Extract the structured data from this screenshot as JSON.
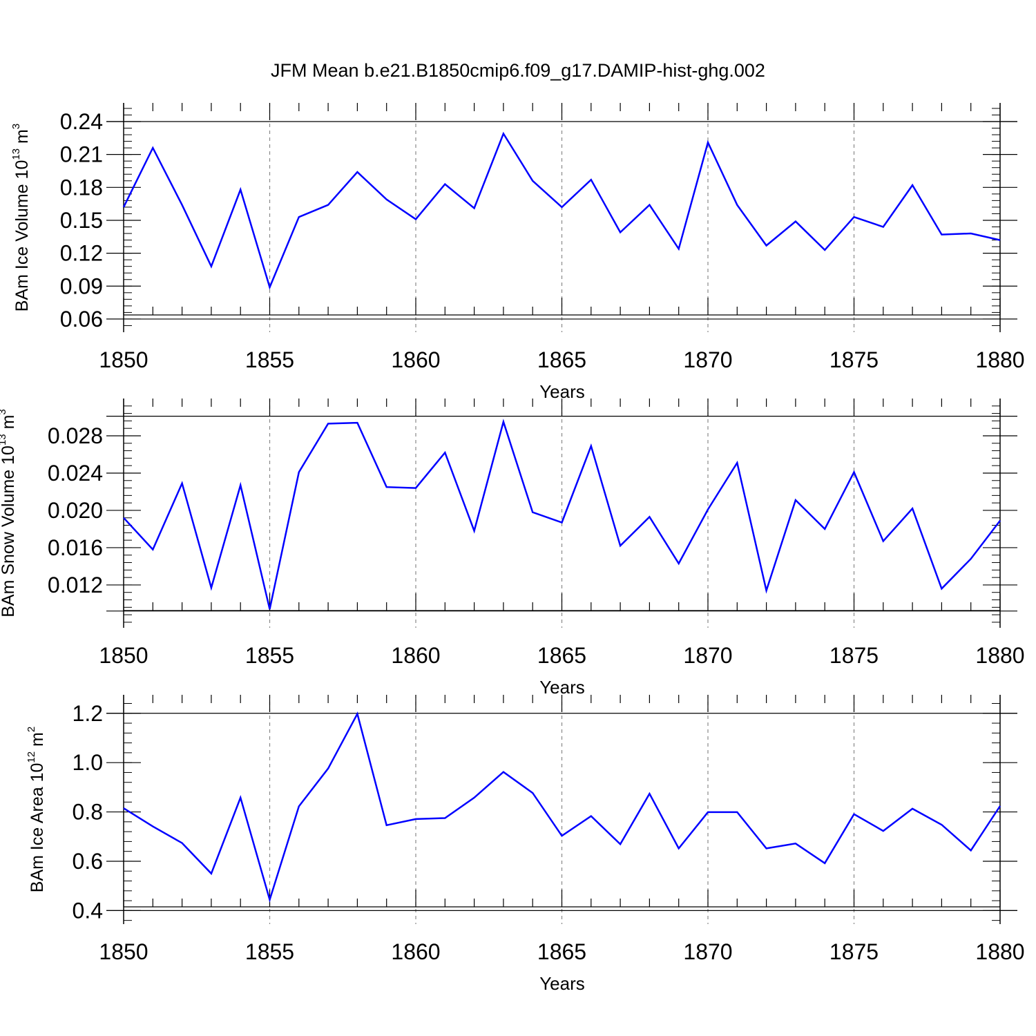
{
  "title": "JFM Mean b.e21.B1850cmip6.f09_g17.DAMIP-hist-ghg.002",
  "colors": {
    "line": "#0000ff",
    "axis": "#000000",
    "grid": "#888888"
  },
  "chart_data": [
    {
      "type": "line",
      "ylabel": {
        "text": "BAm Ice Volume 10",
        "sup": "13",
        "unit": " m",
        "unit_sup": "3"
      },
      "xlabel": "Years",
      "xlim": [
        1850,
        1880
      ],
      "ylim": [
        0.06,
        0.24
      ],
      "ylim_display": [
        0.048,
        0.257
      ],
      "yticks": [
        0.06,
        0.09,
        0.12,
        0.15,
        0.18,
        0.21,
        0.24
      ],
      "ytick_labels": [
        "0.06",
        "0.09",
        "0.12",
        "0.15",
        "0.18",
        "0.21",
        "0.24"
      ],
      "yminor_step": 0.006,
      "xticks": [
        1850,
        1855,
        1860,
        1865,
        1870,
        1875,
        1880
      ],
      "xtick_labels": [
        "1850",
        "1855",
        "1860",
        "1865",
        "1870",
        "1875",
        "1880"
      ],
      "grid": "vertical dashed at major x ticks",
      "series": [
        {
          "name": "BAm Ice Volume",
          "x": [
            1850,
            1851,
            1852,
            1853,
            1854,
            1855,
            1856,
            1857,
            1858,
            1859,
            1860,
            1861,
            1862,
            1863,
            1864,
            1865,
            1866,
            1867,
            1868,
            1869,
            1870,
            1871,
            1872,
            1873,
            1874,
            1875,
            1876,
            1877,
            1878,
            1879,
            1880
          ],
          "values": [
            0.162,
            0.216,
            0.164,
            0.108,
            0.178,
            0.089,
            0.153,
            0.164,
            0.194,
            0.169,
            0.151,
            0.183,
            0.161,
            0.229,
            0.186,
            0.162,
            0.187,
            0.139,
            0.164,
            0.124,
            0.221,
            0.164,
            0.127,
            0.149,
            0.123,
            0.153,
            0.144,
            0.182,
            0.137,
            0.138,
            0.132
          ]
        }
      ]
    },
    {
      "type": "line",
      "ylabel": {
        "text": "BAm Snow Volume 10",
        "sup": "13",
        "unit": " m",
        "unit_sup": "3"
      },
      "xlabel": "Years",
      "xlim": [
        1850,
        1880
      ],
      "ylim": [
        0.0092,
        0.0301
      ],
      "ylim_display": [
        0.0074,
        0.032
      ],
      "yticks": [
        0.012,
        0.016,
        0.02,
        0.024,
        0.028
      ],
      "ytick_labels": [
        "0.012",
        "0.016",
        "0.020",
        "0.024",
        "0.028"
      ],
      "yminor_step": 0.0008,
      "xticks": [
        1850,
        1855,
        1860,
        1865,
        1870,
        1875,
        1880
      ],
      "xtick_labels": [
        "1850",
        "1855",
        "1860",
        "1865",
        "1870",
        "1875",
        "1880"
      ],
      "grid": "vertical dashed at major x ticks",
      "series": [
        {
          "name": "BAm Snow Volume",
          "x": [
            1850,
            1851,
            1852,
            1853,
            1854,
            1855,
            1856,
            1857,
            1858,
            1859,
            1860,
            1861,
            1862,
            1863,
            1864,
            1865,
            1866,
            1867,
            1868,
            1869,
            1870,
            1871,
            1872,
            1873,
            1874,
            1875,
            1876,
            1877,
            1878,
            1879,
            1880
          ],
          "values": [
            0.0192,
            0.0158,
            0.0229,
            0.0117,
            0.0227,
            0.0094,
            0.0241,
            0.0293,
            0.0294,
            0.0225,
            0.0224,
            0.0262,
            0.0178,
            0.0295,
            0.0198,
            0.0187,
            0.0269,
            0.0162,
            0.0193,
            0.0143,
            0.0201,
            0.0251,
            0.0114,
            0.0211,
            0.018,
            0.0241,
            0.0167,
            0.0202,
            0.0116,
            0.0148,
            0.0189
          ]
        }
      ]
    },
    {
      "type": "line",
      "ylabel": {
        "text": "BAm Ice Area 10",
        "sup": "12",
        "unit": " m",
        "unit_sup": "2"
      },
      "xlabel": "Years",
      "xlim": [
        1850,
        1880
      ],
      "ylim": [
        0.4,
        1.2
      ],
      "ylim_display": [
        0.345,
        1.275
      ],
      "yticks": [
        0.4,
        0.6,
        0.8,
        1.0,
        1.2
      ],
      "ytick_labels": [
        "0.4",
        "0.6",
        "0.8",
        "1.0",
        "1.2"
      ],
      "yminor_step": 0.04,
      "xticks": [
        1850,
        1855,
        1860,
        1865,
        1870,
        1875,
        1880
      ],
      "xtick_labels": [
        "1850",
        "1855",
        "1860",
        "1865",
        "1870",
        "1875",
        "1880"
      ],
      "grid": "vertical dashed at major x ticks",
      "series": [
        {
          "name": "BAm Ice Area",
          "x": [
            1850,
            1851,
            1852,
            1853,
            1854,
            1855,
            1856,
            1857,
            1858,
            1859,
            1860,
            1861,
            1862,
            1863,
            1864,
            1865,
            1866,
            1867,
            1868,
            1869,
            1870,
            1871,
            1872,
            1873,
            1874,
            1875,
            1876,
            1877,
            1878,
            1879,
            1880
          ],
          "values": [
            0.815,
            0.741,
            0.674,
            0.55,
            0.858,
            0.444,
            0.823,
            0.976,
            1.198,
            0.746,
            0.771,
            0.775,
            0.858,
            0.962,
            0.877,
            0.703,
            0.783,
            0.669,
            0.874,
            0.652,
            0.799,
            0.799,
            0.652,
            0.672,
            0.592,
            0.791,
            0.723,
            0.813,
            0.748,
            0.644,
            0.824
          ]
        }
      ]
    }
  ]
}
